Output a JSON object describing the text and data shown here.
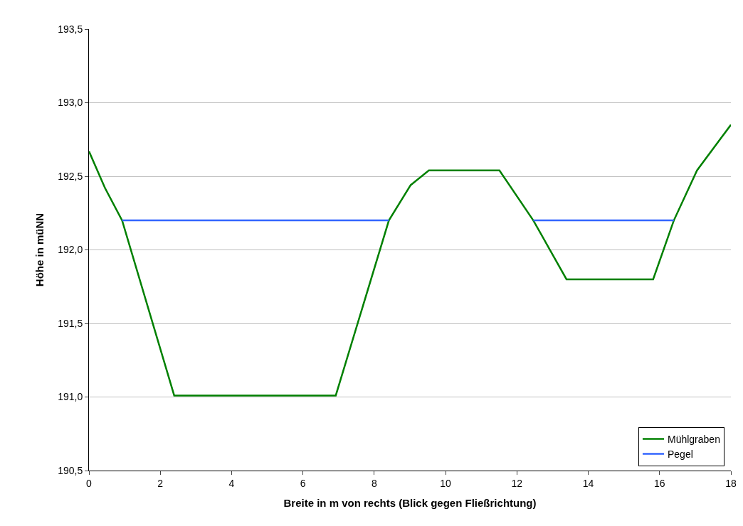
{
  "chart_data": {
    "type": "line",
    "xlabel": "Breite in m von rechts (Blick gegen Fließrichtung)",
    "ylabel": "Höhe in müNN",
    "xlim": [
      0,
      18
    ],
    "xticks": [
      0,
      2,
      4,
      6,
      8,
      10,
      12,
      14,
      16,
      18
    ],
    "ylim": [
      190.5,
      193.5
    ],
    "yticks": [
      {
        "value": 190.5,
        "label": "190,5"
      },
      {
        "value": 191.0,
        "label": "191,0"
      },
      {
        "value": 191.5,
        "label": "191,5"
      },
      {
        "value": 192.0,
        "label": "192,0"
      },
      {
        "value": 192.5,
        "label": "192,5"
      },
      {
        "value": 193.0,
        "label": "193,0"
      },
      {
        "value": 193.5,
        "label": "193,5"
      }
    ],
    "grid": "y",
    "legend": "bottom right",
    "marker": "none",
    "line_style": "solid",
    "series": [
      {
        "name": "Mühlgraben",
        "color": "#008000",
        "x": [
          0,
          0.45,
          0.93,
          2.39,
          6.92,
          8.41,
          9.02,
          9.53,
          11.51,
          12.46,
          13.39,
          15.82,
          16.4,
          17.05,
          18
        ],
        "values": [
          192.67,
          192.42,
          192.2,
          191.01,
          191.01,
          192.2,
          192.44,
          192.54,
          192.54,
          192.2,
          191.8,
          191.8,
          192.2,
          192.54,
          192.85
        ]
      },
      {
        "name": "Pegel",
        "color": "#3366ff",
        "x": [
          0.93,
          8.41,
          10.4,
          12.46,
          16.4
        ],
        "values": [
          192.2,
          192.2,
          null,
          192.2,
          192.2
        ]
      }
    ]
  }
}
